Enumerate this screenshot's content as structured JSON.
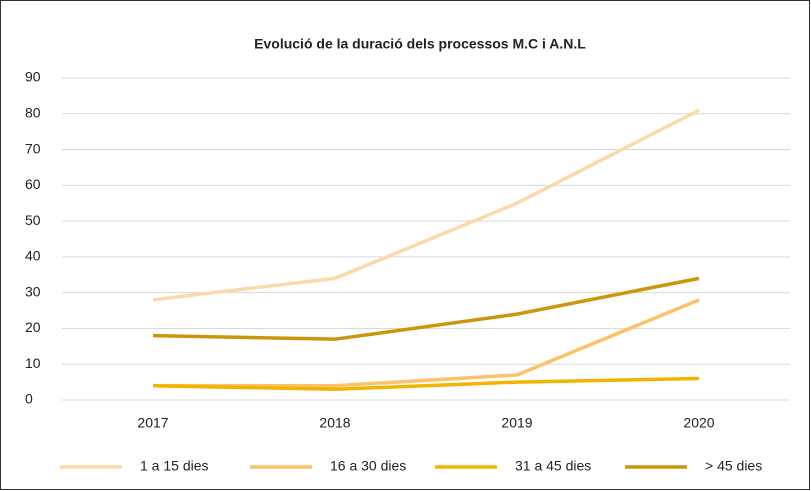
{
  "chart_data": {
    "type": "line",
    "title": "Evolució  de la duració dels processos M.C  i A.N.L",
    "categories": [
      "2017",
      "2018",
      "2019",
      "2020"
    ],
    "series": [
      {
        "name": "1 a 15 dies",
        "color": "#fcd9a9",
        "values": [
          28,
          34,
          55,
          81
        ]
      },
      {
        "name": "16 a 30 dies",
        "color": "#fbc26a",
        "values": [
          4,
          4,
          7,
          28
        ]
      },
      {
        "name": "31 a 45 dies",
        "color": "#f2b400",
        "values": [
          4,
          3,
          5,
          6
        ]
      },
      {
        "name": "> 45 dies",
        "color": "#c9970d",
        "values": [
          18,
          17,
          24,
          34
        ]
      }
    ],
    "ylim": [
      0,
      90
    ],
    "yticks": [
      0,
      10,
      20,
      30,
      40,
      50,
      60,
      70,
      80,
      90
    ],
    "grid": true,
    "legend": "bottom"
  }
}
